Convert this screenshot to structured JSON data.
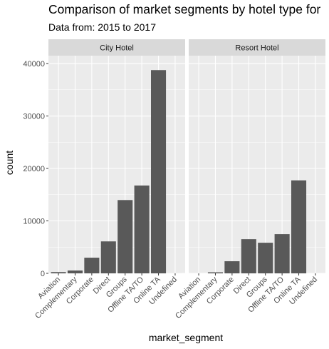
{
  "chart_data": {
    "type": "bar",
    "title": "Comparison of market segments by hotel type for",
    "subtitle": "Data from: 2015 to 2017",
    "xlabel": "market_segment",
    "ylabel": "count",
    "ylim": [
      0,
      41500
    ],
    "yticks": [
      0,
      10000,
      20000,
      30000,
      40000
    ],
    "yticklabels": [
      "0",
      "10000",
      "20000",
      "30000",
      "40000"
    ],
    "categories": [
      "Aviation",
      "Complementary",
      "Corporate",
      "Direct",
      "Groups",
      "Offline TA/TO",
      "Online TA",
      "Undefined"
    ],
    "panels": [
      {
        "name": "City Hotel",
        "values": [
          237,
          542,
          2986,
          6093,
          13975,
          16747,
          38748,
          2
        ]
      },
      {
        "name": "Resort Hotel",
        "values": [
          0,
          201,
          2309,
          6513,
          5836,
          7472,
          17729,
          0
        ]
      }
    ],
    "bar_color": "#595959",
    "panel_background": "#ebebeb",
    "strip_background": "#d9d9d9",
    "grid": true
  }
}
